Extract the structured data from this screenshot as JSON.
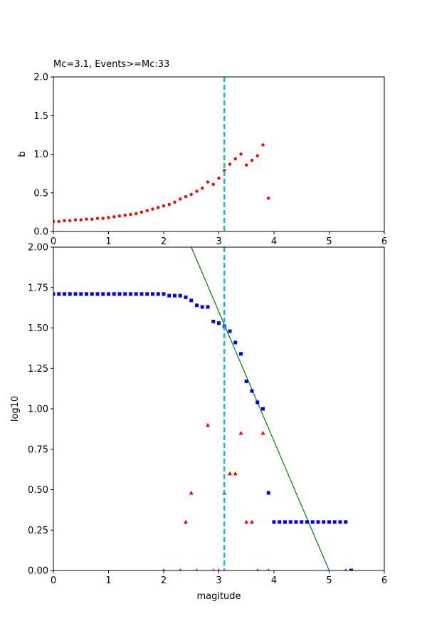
{
  "chart_data": [
    {
      "type": "scatter",
      "title": "Mc=3.1, Events>=Mc:33",
      "xlabel": "",
      "ylabel": "b",
      "xlim": [
        0,
        6
      ],
      "ylim": [
        0,
        2
      ],
      "xticks": [
        "0",
        "1",
        "2",
        "3",
        "4",
        "5",
        "6"
      ],
      "yticks": [
        "0.0",
        "0.5",
        "1.0",
        "1.5",
        "2.0"
      ],
      "grid": false,
      "mc_line": {
        "x": 3.1,
        "color": "#17becf",
        "style": "dashed"
      },
      "series": [
        {
          "color": "#ff0000",
          "marker": "circle",
          "x": [
            0.0,
            0.1,
            0.2,
            0.3,
            0.4,
            0.5,
            0.6,
            0.7,
            0.8,
            0.9,
            1.0,
            1.1,
            1.2,
            1.3,
            1.4,
            1.5,
            1.6,
            1.7,
            1.8,
            1.9,
            2.0,
            2.1,
            2.2,
            2.3,
            2.4,
            2.5,
            2.6,
            2.7,
            2.8,
            2.9,
            3.0,
            3.1,
            3.2,
            3.3,
            3.4,
            3.5,
            3.6,
            3.7,
            3.8,
            3.9
          ],
          "y": [
            0.13,
            0.13,
            0.14,
            0.14,
            0.15,
            0.15,
            0.16,
            0.16,
            0.17,
            0.17,
            0.18,
            0.19,
            0.2,
            0.21,
            0.22,
            0.23,
            0.25,
            0.27,
            0.29,
            0.31,
            0.33,
            0.35,
            0.38,
            0.42,
            0.45,
            0.48,
            0.52,
            0.56,
            0.64,
            0.61,
            0.69,
            0.79,
            0.87,
            0.94,
            1.0,
            0.86,
            0.92,
            0.98,
            1.12,
            0.43
          ]
        }
      ]
    },
    {
      "type": "scatter",
      "title": "",
      "xlabel": "magitude",
      "ylabel": "log10",
      "xlim": [
        0,
        6
      ],
      "ylim": [
        0,
        2
      ],
      "xticks": [
        "0",
        "1",
        "2",
        "3",
        "4",
        "5",
        "6"
      ],
      "yticks": [
        "0.00",
        "0.25",
        "0.50",
        "0.75",
        "1.00",
        "1.25",
        "1.50",
        "1.75",
        "2.00"
      ],
      "grid": false,
      "mc_line": {
        "x": 3.1,
        "color": "#17becf",
        "style": "dashed"
      },
      "fit_line": {
        "color": "#008000",
        "x": [
          2.5,
          5.0
        ],
        "y": [
          2.0,
          0.0
        ]
      },
      "series": [
        {
          "color": "#0000ff",
          "marker": "square",
          "x": [
            0.0,
            0.1,
            0.2,
            0.3,
            0.4,
            0.5,
            0.6,
            0.7,
            0.8,
            0.9,
            1.0,
            1.1,
            1.2,
            1.3,
            1.4,
            1.5,
            1.6,
            1.7,
            1.8,
            1.9,
            2.0,
            2.1,
            2.2,
            2.3,
            2.4,
            2.5,
            2.6,
            2.7,
            2.8,
            2.9,
            3.0,
            3.1,
            3.2,
            3.3,
            3.4,
            3.5,
            3.6,
            3.7,
            3.8,
            3.9,
            4.0,
            4.1,
            4.2,
            4.3,
            4.4,
            4.5,
            4.6,
            4.7,
            4.8,
            4.9,
            5.0,
            5.1,
            5.2,
            5.3,
            5.4
          ],
          "y": [
            1.71,
            1.71,
            1.71,
            1.71,
            1.71,
            1.71,
            1.71,
            1.71,
            1.71,
            1.71,
            1.71,
            1.71,
            1.71,
            1.71,
            1.71,
            1.71,
            1.71,
            1.71,
            1.71,
            1.71,
            1.71,
            1.7,
            1.7,
            1.7,
            1.69,
            1.67,
            1.64,
            1.63,
            1.63,
            1.54,
            1.53,
            1.51,
            1.48,
            1.41,
            1.34,
            1.17,
            1.11,
            1.04,
            1.0,
            0.48,
            0.3,
            0.3,
            0.3,
            0.3,
            0.3,
            0.3,
            0.3,
            0.3,
            0.3,
            0.3,
            0.3,
            0.3,
            0.3,
            0.3,
            0.0
          ]
        },
        {
          "color": "#ff0000",
          "marker": "triangle",
          "x": [
            2.0,
            2.3,
            2.4,
            2.5,
            2.6,
            2.8,
            2.9,
            3.0,
            3.1,
            3.2,
            3.3,
            3.4,
            3.5,
            3.6,
            3.7,
            3.8,
            3.9,
            5.3
          ],
          "y": [
            0.0,
            0.0,
            0.3,
            0.48,
            0.0,
            0.9,
            0.0,
            0.0,
            0.48,
            0.6,
            0.6,
            0.85,
            0.3,
            0.3,
            0.0,
            0.85,
            0.0,
            0.0
          ]
        }
      ]
    }
  ]
}
